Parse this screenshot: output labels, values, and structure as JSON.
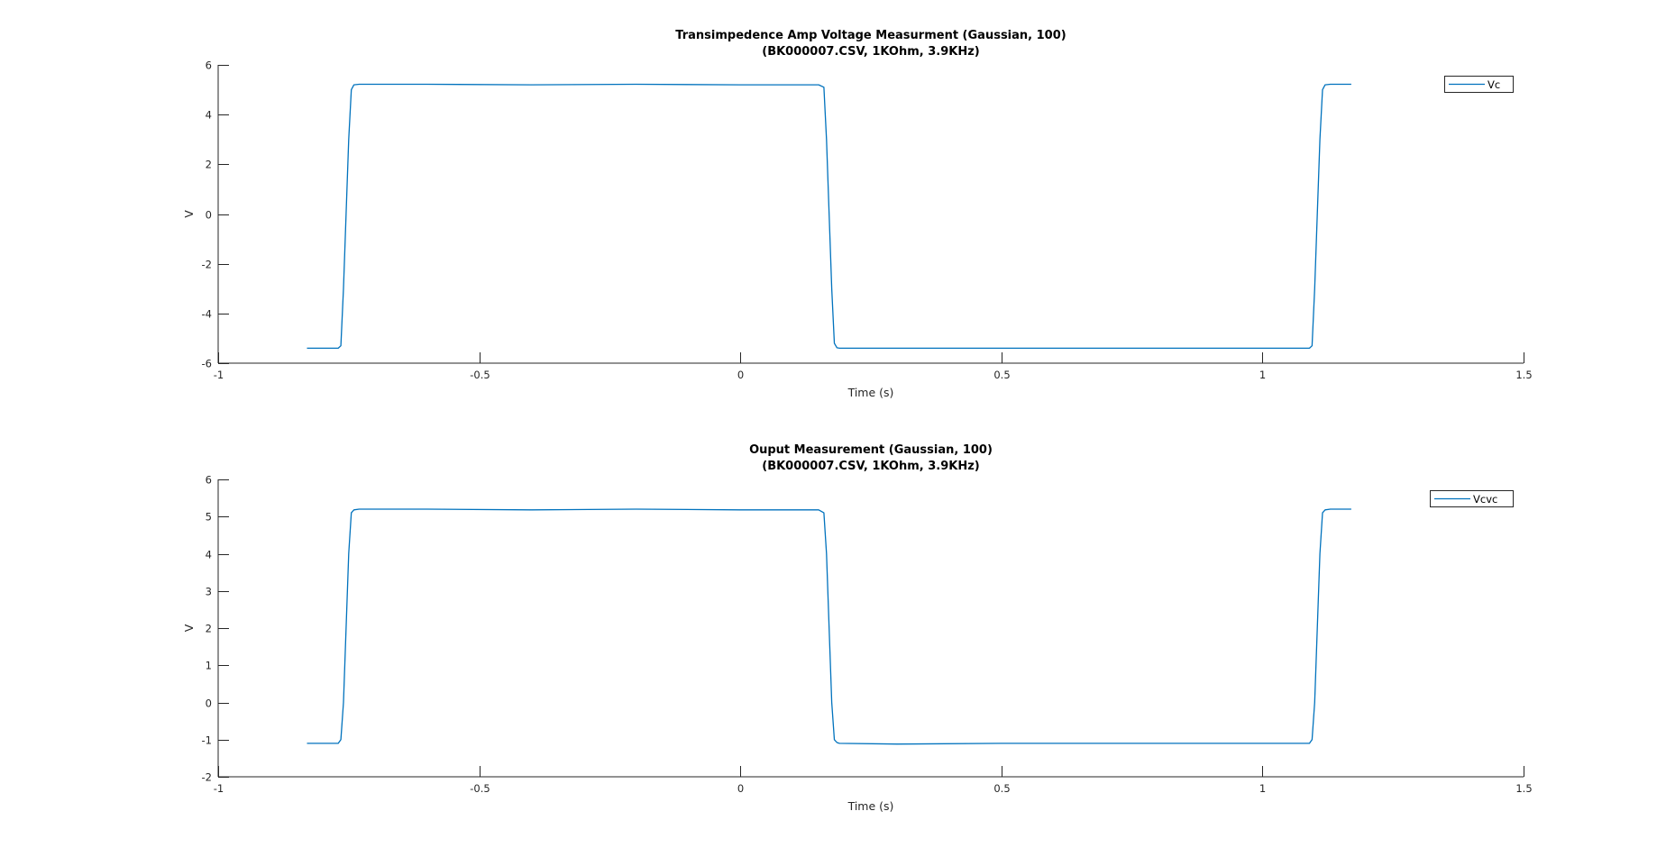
{
  "chart_data": [
    {
      "type": "line",
      "title": [
        "Transimpedence Amp Voltage Measurment (Gaussian, 100)",
        "(BK000007.CSV, 1KOhm, 3.9KHz)"
      ],
      "xlabel": "Time (s)",
      "ylabel": "V",
      "xlim": [
        -1,
        1.5
      ],
      "ylim": [
        -6,
        6
      ],
      "xticks": [
        "-1",
        "-0.5",
        "0",
        "0.5",
        "1",
        "1.5"
      ],
      "xtick_values": [
        -1,
        -0.5,
        0,
        0.5,
        1,
        1.5
      ],
      "yticks": [
        "-6",
        "-4",
        "-2",
        "0",
        "2",
        "4",
        "6"
      ],
      "ytick_values": [
        -6,
        -4,
        -2,
        0,
        2,
        4,
        6
      ],
      "grid": false,
      "legend_position": "top-right",
      "series": [
        {
          "name": "Vc",
          "color": "#0072BD",
          "x": [
            -0.83,
            -0.77,
            -0.765,
            -0.76,
            -0.755,
            -0.75,
            -0.745,
            -0.74,
            -0.73,
            -0.6,
            -0.4,
            -0.2,
            0.0,
            0.15,
            0.16,
            0.165,
            0.17,
            0.175,
            0.18,
            0.185,
            0.19,
            0.3,
            0.5,
            0.7,
            0.9,
            1.09,
            1.095,
            1.1,
            1.105,
            1.11,
            1.115,
            1.12,
            1.13,
            1.17
          ],
          "y": [
            -5.4,
            -5.4,
            -5.3,
            -3.0,
            0.0,
            3.0,
            5.0,
            5.2,
            5.22,
            5.22,
            5.2,
            5.22,
            5.2,
            5.2,
            5.1,
            3.0,
            0.0,
            -3.0,
            -5.2,
            -5.38,
            -5.4,
            -5.4,
            -5.4,
            -5.4,
            -5.4,
            -5.4,
            -5.3,
            -3.0,
            0.0,
            3.0,
            5.0,
            5.2,
            5.22,
            5.22
          ]
        }
      ]
    },
    {
      "type": "line",
      "title": [
        "Ouput Measurement (Gaussian, 100)",
        "(BK000007.CSV, 1KOhm, 3.9KHz)"
      ],
      "xlabel": "Time (s)",
      "ylabel": "V",
      "xlim": [
        -1,
        1.5
      ],
      "ylim": [
        -2,
        6
      ],
      "xticks": [
        "-1",
        "-0.5",
        "0",
        "0.5",
        "1",
        "1.5"
      ],
      "xtick_values": [
        -1,
        -0.5,
        0,
        0.5,
        1,
        1.5
      ],
      "yticks": [
        "-2",
        "-1",
        "0",
        "1",
        "2",
        "3",
        "4",
        "5",
        "6"
      ],
      "ytick_values": [
        -2,
        -1,
        0,
        1,
        2,
        3,
        4,
        5,
        6
      ],
      "grid": false,
      "legend_position": "top-right",
      "series": [
        {
          "name": "Vcvc",
          "color": "#0072BD",
          "x": [
            -0.83,
            -0.77,
            -0.765,
            -0.76,
            -0.755,
            -0.75,
            -0.745,
            -0.74,
            -0.73,
            -0.6,
            -0.4,
            -0.2,
            0.0,
            0.15,
            0.16,
            0.165,
            0.17,
            0.175,
            0.18,
            0.185,
            0.19,
            0.3,
            0.5,
            0.7,
            0.9,
            1.09,
            1.095,
            1.1,
            1.105,
            1.11,
            1.115,
            1.12,
            1.13,
            1.17
          ],
          "y": [
            -1.1,
            -1.1,
            -1.0,
            0.0,
            2.0,
            4.0,
            5.1,
            5.18,
            5.2,
            5.2,
            5.18,
            5.2,
            5.18,
            5.18,
            5.1,
            4.0,
            2.0,
            0.0,
            -1.0,
            -1.08,
            -1.1,
            -1.12,
            -1.1,
            -1.1,
            -1.1,
            -1.1,
            -1.0,
            0.0,
            2.0,
            4.0,
            5.1,
            5.18,
            5.2,
            5.2
          ]
        }
      ]
    }
  ]
}
